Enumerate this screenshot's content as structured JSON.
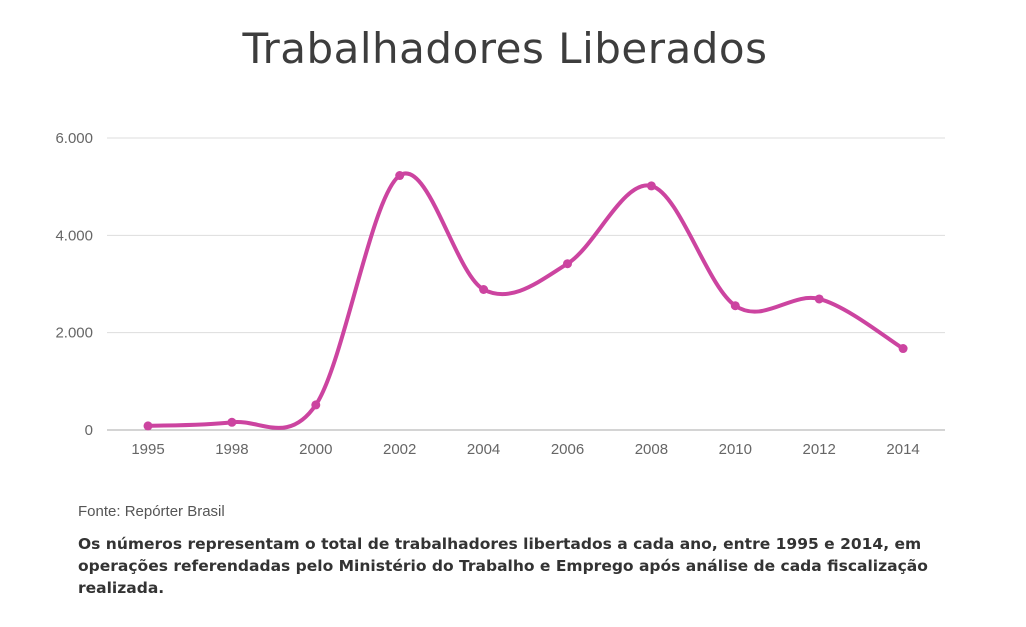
{
  "title": "Trabalhadores Liberados",
  "source": "Fonte: Repórter Brasil",
  "note": "Os números representam o total de trabalhadores libertados a cada ano, entre 1995 e 2014, em operações referendadas pelo Ministério do Trabalho e Emprego após análise de cada fiscalização realizada.",
  "colors": {
    "line": "#cc44a0",
    "grid": "#dddddd",
    "axis": "#aaaaaa",
    "tick": "#666666"
  },
  "chart_data": {
    "type": "line",
    "title": "Trabalhadores Liberados",
    "categories": [
      "1995",
      "1998",
      "2000",
      "2002",
      "2004",
      "2006",
      "2008",
      "2010",
      "2012",
      "2014"
    ],
    "values": [
      84,
      159,
      516,
      5229,
      2887,
      3417,
      5016,
      2553,
      2693,
      1674
    ],
    "yticks": [
      0,
      2000,
      4000,
      6000
    ],
    "ytick_labels": [
      "0",
      "2.000",
      "4.000",
      "6.000"
    ],
    "ylim": [
      0,
      6000
    ],
    "grid": true,
    "smooth": true
  }
}
